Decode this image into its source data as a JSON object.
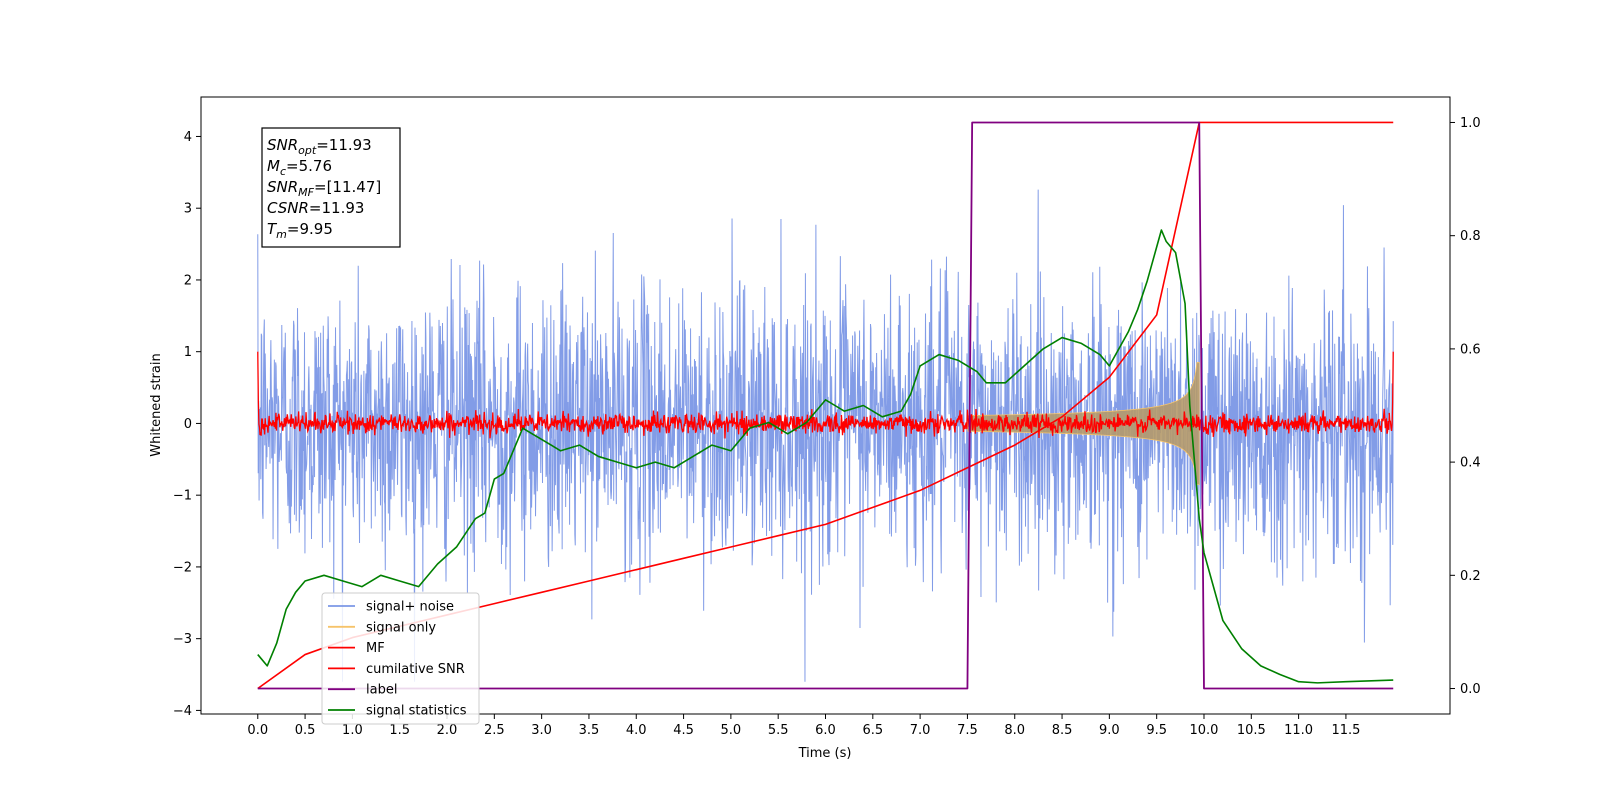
{
  "chart_data": {
    "type": "line",
    "xlabel": "Time (s)",
    "ylabel": "Whitened strain",
    "xlim": [
      -0.6,
      12.6
    ],
    "ylim": [
      -4.05,
      4.55
    ],
    "y2lim": [
      -0.045,
      1.045
    ],
    "x_ticks": [
      "0.0",
      "0.5",
      "1.0",
      "1.5",
      "2.0",
      "2.5",
      "3.0",
      "3.5",
      "4.0",
      "4.5",
      "5.0",
      "5.5",
      "6.0",
      "6.5",
      "7.0",
      "7.5",
      "8.0",
      "8.5",
      "9.0",
      "9.5",
      "10.0",
      "10.5",
      "11.0",
      "11.5"
    ],
    "y_ticks": [
      "−4",
      "−3",
      "−2",
      "−1",
      "0",
      "1",
      "2",
      "3",
      "4"
    ],
    "y2_ticks": [
      "0.0",
      "0.2",
      "0.4",
      "0.6",
      "0.8",
      "1.0"
    ],
    "annotation": {
      "snr_opt": {
        "sym": "SNR",
        "sub": "opt",
        "value": "=11.93"
      },
      "mc": {
        "sym": "M",
        "sub": "c",
        "value": "=5.76"
      },
      "snr_mf": {
        "sym": "SNR",
        "sub": "MF",
        "value": "=[11.47]"
      },
      "csnr": {
        "sym": "CSNR",
        "sub": "",
        "value": "=11.93"
      },
      "tm": {
        "sym": "T",
        "sub": "m",
        "value": "=9.95"
      }
    },
    "legend_position": "lower-left",
    "series": [
      {
        "name": "signal+ noise",
        "color": "#7b97e6",
        "axis": "left",
        "amplitude_sd": 0.95,
        "x_range": [
          0,
          12
        ]
      },
      {
        "name": "signal only",
        "color": "#f6c36a",
        "axis": "left",
        "x_range": [
          7.5,
          9.95
        ],
        "envelope_peak": 0.85
      },
      {
        "name": "MF",
        "color": "#ff0000",
        "axis": "left",
        "noise_sd": 0.07,
        "x_range": [
          0,
          12
        ]
      },
      {
        "name": "cumilative SNR",
        "color": "#ff0000",
        "axis": "right",
        "x": [
          0,
          0.5,
          1.0,
          1.5,
          2.0,
          2.5,
          3.0,
          3.5,
          4.0,
          4.5,
          5.0,
          5.5,
          6.0,
          6.5,
          7.0,
          7.5,
          8.0,
          8.5,
          9.0,
          9.5,
          9.95,
          10.0,
          12.0
        ],
        "values": [
          0.0,
          0.06,
          0.09,
          0.11,
          0.13,
          0.15,
          0.17,
          0.19,
          0.21,
          0.23,
          0.25,
          0.27,
          0.29,
          0.32,
          0.35,
          0.39,
          0.43,
          0.48,
          0.55,
          0.66,
          1.0,
          1.0,
          1.0
        ]
      },
      {
        "name": "label",
        "color": "#800080",
        "axis": "right",
        "x": [
          0,
          7.5,
          7.55,
          9.95,
          10.0,
          12.0
        ],
        "values": [
          0,
          0,
          1,
          1,
          0,
          0
        ]
      },
      {
        "name": "signal statistics",
        "color": "#008000",
        "axis": "right",
        "x": [
          0,
          0.1,
          0.2,
          0.3,
          0.4,
          0.5,
          0.7,
          0.9,
          1.1,
          1.3,
          1.5,
          1.7,
          1.9,
          2.1,
          2.3,
          2.4,
          2.5,
          2.6,
          2.7,
          2.8,
          2.9,
          3.0,
          3.1,
          3.2,
          3.4,
          3.6,
          3.8,
          4.0,
          4.2,
          4.4,
          4.6,
          4.8,
          5.0,
          5.2,
          5.4,
          5.6,
          5.8,
          6.0,
          6.1,
          6.2,
          6.4,
          6.6,
          6.8,
          6.9,
          7.0,
          7.2,
          7.4,
          7.6,
          7.7,
          7.9,
          8.1,
          8.3,
          8.5,
          8.7,
          8.9,
          9.0,
          9.1,
          9.2,
          9.3,
          9.4,
          9.5,
          9.55,
          9.6,
          9.7,
          9.8,
          9.85,
          9.9,
          9.95,
          10.0,
          10.1,
          10.2,
          10.4,
          10.6,
          10.8,
          11.0,
          11.2,
          11.5,
          12.0
        ],
        "values": [
          0.06,
          0.04,
          0.08,
          0.14,
          0.17,
          0.19,
          0.2,
          0.19,
          0.18,
          0.2,
          0.19,
          0.18,
          0.22,
          0.25,
          0.3,
          0.31,
          0.37,
          0.38,
          0.42,
          0.46,
          0.45,
          0.44,
          0.43,
          0.42,
          0.43,
          0.41,
          0.4,
          0.39,
          0.4,
          0.39,
          0.41,
          0.43,
          0.42,
          0.46,
          0.47,
          0.45,
          0.47,
          0.51,
          0.5,
          0.49,
          0.5,
          0.48,
          0.49,
          0.52,
          0.57,
          0.59,
          0.58,
          0.56,
          0.54,
          0.54,
          0.57,
          0.6,
          0.62,
          0.61,
          0.59,
          0.57,
          0.6,
          0.63,
          0.67,
          0.72,
          0.78,
          0.81,
          0.79,
          0.77,
          0.68,
          0.5,
          0.4,
          0.3,
          0.24,
          0.18,
          0.12,
          0.07,
          0.04,
          0.025,
          0.012,
          0.01,
          0.012,
          0.015
        ]
      }
    ]
  }
}
